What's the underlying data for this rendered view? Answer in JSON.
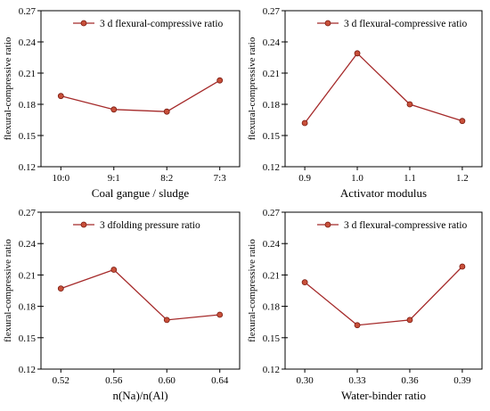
{
  "colors": {
    "line": "#a52a2a",
    "marker_fill": "#c8503a",
    "marker_stroke": "#7a1a10",
    "axis": "#000000"
  },
  "chart_data": [
    {
      "type": "line",
      "ylabel": "flexural-compressive ratio",
      "xlabel": "Coal gangue / sludge",
      "categories": [
        "10:0",
        "9:1",
        "8:2",
        "7:3"
      ],
      "series": [
        {
          "name": "3 d  flexural-compressive ratio",
          "values": [
            0.188,
            0.175,
            0.173,
            0.203
          ]
        }
      ],
      "ylim": [
        0.12,
        0.27
      ],
      "yticks": [
        "0.12",
        "0.15",
        "0.18",
        "0.21",
        "0.24",
        "0.27"
      ],
      "legend": "top-right"
    },
    {
      "type": "line",
      "ylabel": "flexural-compressive ratio",
      "xlabel": "Activator modulus",
      "categories": [
        "0.9",
        "1.0",
        "1.1",
        "1.2"
      ],
      "series": [
        {
          "name": "3 d flexural-compressive ratio",
          "values": [
            0.162,
            0.229,
            0.18,
            0.164
          ]
        }
      ],
      "ylim": [
        0.12,
        0.27
      ],
      "yticks": [
        "0.12",
        "0.15",
        "0.18",
        "0.21",
        "0.24",
        "0.27"
      ],
      "legend": "top-right"
    },
    {
      "type": "line",
      "ylabel": "flexural-compressive ratio",
      "xlabel": "n(Na)/n(Al)",
      "categories": [
        "0.52",
        "0.56",
        "0.60",
        "0.64"
      ],
      "series": [
        {
          "name": "3 dfolding pressure ratio",
          "values": [
            0.197,
            0.215,
            0.167,
            0.172
          ]
        }
      ],
      "ylim": [
        0.12,
        0.27
      ],
      "yticks": [
        "0.12",
        "0.15",
        "0.18",
        "0.21",
        "0.24",
        "0.27"
      ],
      "legend": "top-right"
    },
    {
      "type": "line",
      "ylabel": "flexural-compressive ratio",
      "xlabel": "Water-binder ratio",
      "categories": [
        "0.30",
        "0.33",
        "0.36",
        "0.39"
      ],
      "series": [
        {
          "name": "3 d flexural-compressive ratio",
          "values": [
            0.203,
            0.162,
            0.167,
            0.218
          ]
        }
      ],
      "ylim": [
        0.12,
        0.27
      ],
      "yticks": [
        "0.12",
        "0.15",
        "0.18",
        "0.21",
        "0.24",
        "0.27"
      ],
      "legend": "top-right"
    }
  ]
}
